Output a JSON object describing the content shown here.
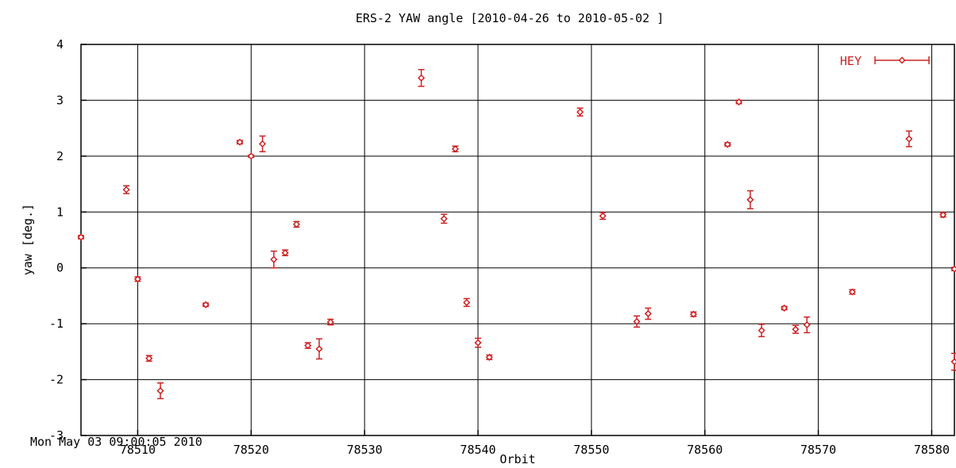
{
  "chart_data": {
    "type": "scatter",
    "title": "ERS-2 YAW angle [2010-04-26 to 2010-05-02 ]",
    "xlabel": "Orbit",
    "ylabel": "yaw [deg.]",
    "xlim": [
      78505,
      78582
    ],
    "ylim": [
      -3,
      4
    ],
    "x_ticks": [
      78510,
      78520,
      78530,
      78540,
      78550,
      78560,
      78570,
      78580
    ],
    "y_ticks": [
      -3,
      -2,
      -1,
      0,
      1,
      2,
      3,
      4
    ],
    "grid": true,
    "legend_position": "top-right",
    "series": [
      {
        "name": "HEY",
        "color": "#cc2222",
        "error_bars": true,
        "points": [
          {
            "x": 78505,
            "y": 0.55,
            "err": 0.03
          },
          {
            "x": 78509,
            "y": 1.4,
            "err": 0.07
          },
          {
            "x": 78510,
            "y": -0.2,
            "err": 0.04
          },
          {
            "x": 78511,
            "y": -1.62,
            "err": 0.05
          },
          {
            "x": 78512,
            "y": -2.2,
            "err": 0.14
          },
          {
            "x": 78516,
            "y": -0.66,
            "err": 0.03
          },
          {
            "x": 78519,
            "y": 2.25,
            "err": 0.03
          },
          {
            "x": 78520,
            "y": 2.0,
            "err": 0.02
          },
          {
            "x": 78521,
            "y": 2.22,
            "err": 0.14
          },
          {
            "x": 78522,
            "y": 0.15,
            "err": 0.15
          },
          {
            "x": 78523,
            "y": 0.27,
            "err": 0.05
          },
          {
            "x": 78524,
            "y": 0.78,
            "err": 0.05
          },
          {
            "x": 78525,
            "y": -1.39,
            "err": 0.05
          },
          {
            "x": 78526,
            "y": -1.45,
            "err": 0.18
          },
          {
            "x": 78527,
            "y": -0.97,
            "err": 0.05
          },
          {
            "x": 78535,
            "y": 3.4,
            "err": 0.15
          },
          {
            "x": 78537,
            "y": 0.88,
            "err": 0.08
          },
          {
            "x": 78538,
            "y": 2.13,
            "err": 0.05
          },
          {
            "x": 78539,
            "y": -0.62,
            "err": 0.07
          },
          {
            "x": 78540,
            "y": -1.34,
            "err": 0.08
          },
          {
            "x": 78541,
            "y": -1.6,
            "err": 0.04
          },
          {
            "x": 78549,
            "y": 2.79,
            "err": 0.07
          },
          {
            "x": 78551,
            "y": 0.93,
            "err": 0.06
          },
          {
            "x": 78554,
            "y": -0.96,
            "err": 0.1
          },
          {
            "x": 78555,
            "y": -0.82,
            "err": 0.1
          },
          {
            "x": 78559,
            "y": -0.83,
            "err": 0.04
          },
          {
            "x": 78562,
            "y": 2.21,
            "err": 0.03
          },
          {
            "x": 78563,
            "y": 2.97,
            "err": 0.03
          },
          {
            "x": 78564,
            "y": 1.22,
            "err": 0.16
          },
          {
            "x": 78565,
            "y": -1.12,
            "err": 0.11
          },
          {
            "x": 78567,
            "y": -0.72,
            "err": 0.03
          },
          {
            "x": 78568,
            "y": -1.1,
            "err": 0.07
          },
          {
            "x": 78569,
            "y": -1.02,
            "err": 0.14
          },
          {
            "x": 78573,
            "y": -0.43,
            "err": 0.04
          },
          {
            "x": 78578,
            "y": 2.31,
            "err": 0.14
          },
          {
            "x": 78581,
            "y": 0.95,
            "err": 0.04
          },
          {
            "x": 78582,
            "y": -0.02,
            "err": 0.03
          },
          {
            "x": 78582,
            "y": -1.68,
            "err": 0.15
          }
        ]
      }
    ]
  },
  "footer": {
    "timestamp": "Mon May 03 09:00:05 2010"
  }
}
